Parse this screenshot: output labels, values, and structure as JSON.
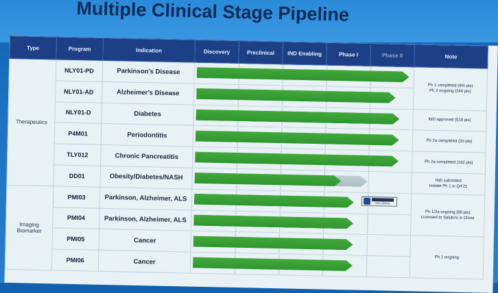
{
  "title": "Multiple Clinical Stage Pipeline",
  "headers": {
    "type": "Type",
    "program": "Program",
    "indication": "Indication",
    "stages": [
      "Discovery",
      "Preclinical",
      "IND Enabling",
      "Phase I",
      "Phase II"
    ],
    "note": "Note"
  },
  "groups": [
    {
      "label": "Therapeutics"
    },
    {
      "label": "Imaging Biomarker"
    }
  ],
  "rows": [
    {
      "program": "NLY01-PD",
      "indication": "Parkinson's Disease",
      "progress_stages": 4.9,
      "note": "Ph 1 completed (9% pts)\nPh 2 ongoing (240 pts)"
    },
    {
      "program": "NLY01-AD",
      "indication": "Alzheimer's Disease",
      "progress_stages": 4.6,
      "note": ""
    },
    {
      "program": "NLY01-D",
      "indication": "Diabetes",
      "progress_stages": 4.7,
      "note": "IND approved (518 pts)"
    },
    {
      "program": "P4M01",
      "indication": "Periodontitis",
      "progress_stages": 4.7,
      "note": "Ph 2a completed (20 pts)"
    },
    {
      "program": "TLY012",
      "indication": "Chronic Pancreatitis",
      "progress_stages": 4.7,
      "note": "Ph 2a completed (162 pts)"
    },
    {
      "program": "DD01",
      "indication": "Obesity/Diabetes/NASH",
      "progress_stages": 3.4,
      "progress_extended": 4.0,
      "note": "IND submitted\nInitiate Ph 1 in Q4'21"
    },
    {
      "program": "PMI03",
      "indication": "Parkinson, Alzheimer, ALS",
      "progress_stages": 3.7,
      "partner_logo": "SALUBRIS",
      "note": "Ph 1/2a ongoing (88 pts)\nLicensed to Salubris in China"
    },
    {
      "program": "PMI04",
      "indication": "Parkinson, Alzheimer, ALS",
      "progress_stages": 3.7,
      "note": ""
    },
    {
      "program": "PMI05",
      "indication": "Cancer",
      "progress_stages": 3.7,
      "note": "Ph 1 ongoing"
    },
    {
      "program": "PMI06",
      "indication": "Cancer",
      "progress_stages": 3.7,
      "note": ""
    }
  ],
  "colors": {
    "bar": "#2f9530",
    "header": "#1d3f86",
    "title": "#0e2a5a"
  }
}
